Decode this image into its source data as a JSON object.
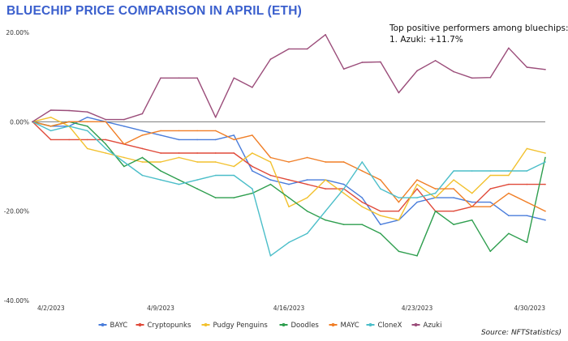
{
  "title": "BLUECHIP PRICE COMPARISON IN APRIL (ETH)",
  "annotation": {
    "line1": "Top positive performers among bluechips:",
    "line2": "1. Azuki: +11.7%"
  },
  "source": "Source: NFTStatistics)",
  "colors": {
    "title": "#3a5fcd"
  },
  "chart_data": {
    "type": "line",
    "title": "BLUECHIP PRICE COMPARISON IN APRIL (ETH)",
    "xlabel": "",
    "ylabel": "",
    "ylim": [
      -40,
      20
    ],
    "y_ticks": [
      20,
      0,
      -20,
      -40
    ],
    "y_tick_labels": [
      "20.00%",
      "0.00%",
      "-20.00%",
      "-40.00%"
    ],
    "x": [
      "4/2/2023",
      "4/3/2023",
      "4/4/2023",
      "4/5/2023",
      "4/6/2023",
      "4/7/2023",
      "4/8/2023",
      "4/9/2023",
      "4/10/2023",
      "4/11/2023",
      "4/12/2023",
      "4/13/2023",
      "4/14/2023",
      "4/15/2023",
      "4/16/2023",
      "4/17/2023",
      "4/18/2023",
      "4/19/2023",
      "4/20/2023",
      "4/21/2023",
      "4/22/2023",
      "4/23/2023",
      "4/24/2023",
      "4/25/2023",
      "4/26/2023",
      "4/27/2023",
      "4/28/2023",
      "4/29/2023",
      "4/30/2023"
    ],
    "x_tick_labels": [
      "4/2/2023",
      "4/9/2023",
      "4/16/2023",
      "4/23/2023",
      "4/30/2023"
    ],
    "x_tick_indices": [
      0,
      7,
      14,
      21,
      28
    ],
    "zero_line": true,
    "grid": false,
    "legend_position": "bottom",
    "series": [
      {
        "name": "BAYC",
        "color": "#4a7ddb",
        "values": [
          0,
          -1,
          -1,
          1,
          0,
          -1,
          -2,
          -3,
          -4,
          -4,
          -4,
          -3,
          -11,
          -13,
          -14,
          -13,
          -13,
          -14,
          -17,
          -23,
          -22,
          -18,
          -17,
          -17,
          -18,
          -18,
          -21,
          -21,
          -22
        ]
      },
      {
        "name": "Cryptopunks",
        "color": "#e04a3a",
        "values": [
          0,
          -4,
          -4,
          -4,
          -4,
          -5,
          -6,
          -7,
          -7,
          -7,
          -7,
          -7,
          -10,
          -12,
          -13,
          -14,
          -15,
          -15,
          -18,
          -20,
          -20,
          -15,
          -20,
          -20,
          -19,
          -15,
          -14,
          -14,
          -14
        ]
      },
      {
        "name": "Pudgy Penguins",
        "color": "#f2c12e",
        "values": [
          0,
          1,
          -1,
          -6,
          -7,
          -8,
          -9,
          -9,
          -8,
          -9,
          -9,
          -10,
          -7,
          -9,
          -19,
          -17,
          -13,
          -16,
          -19,
          -21,
          -22,
          -14,
          -17,
          -13,
          -16,
          -12,
          -12,
          -6,
          -7
        ]
      },
      {
        "name": "Doodles",
        "color": "#2e9e4e",
        "values": [
          0,
          -1,
          0,
          -1,
          -5,
          -10,
          -8,
          -11,
          -13,
          -15,
          -17,
          -17,
          -16,
          -14,
          -17,
          -20,
          -22,
          -23,
          -23,
          -25,
          -29,
          -30,
          -20,
          -23,
          -22,
          -29,
          -25,
          -27,
          -8
        ]
      },
      {
        "name": "MAYC",
        "color": "#f07e26",
        "values": [
          0,
          -1,
          0,
          0,
          0,
          -5,
          -3,
          -2,
          -2,
          -2,
          -2,
          -4,
          -3,
          -8,
          -9,
          -8,
          -9,
          -9,
          -11,
          -13,
          -18,
          -13,
          -15,
          -15,
          -19,
          -19,
          -16,
          -18,
          -20
        ]
      },
      {
        "name": "CloneX",
        "color": "#4bbec9",
        "values": [
          0,
          -2,
          -1,
          -2,
          -6,
          -9,
          -12,
          -13,
          -14,
          -13,
          -12,
          -12,
          -15,
          -30,
          -27,
          -25,
          -20,
          -15,
          -9,
          -15,
          -17,
          -17,
          -16,
          -11,
          -11,
          -11,
          -11,
          -11,
          -9
        ]
      },
      {
        "name": "Azuki",
        "color": "#9b4d7a",
        "values": [
          0,
          2.6,
          2.5,
          2.2,
          0.5,
          0.5,
          1.8,
          9.8,
          9.8,
          9.8,
          1.0,
          9.8,
          7.7,
          14.0,
          16.3,
          16.3,
          19.5,
          11.8,
          13.3,
          13.4,
          6.5,
          11.4,
          13.7,
          11.2,
          9.8,
          9.9,
          16.5,
          12.2,
          11.7
        ]
      }
    ]
  }
}
